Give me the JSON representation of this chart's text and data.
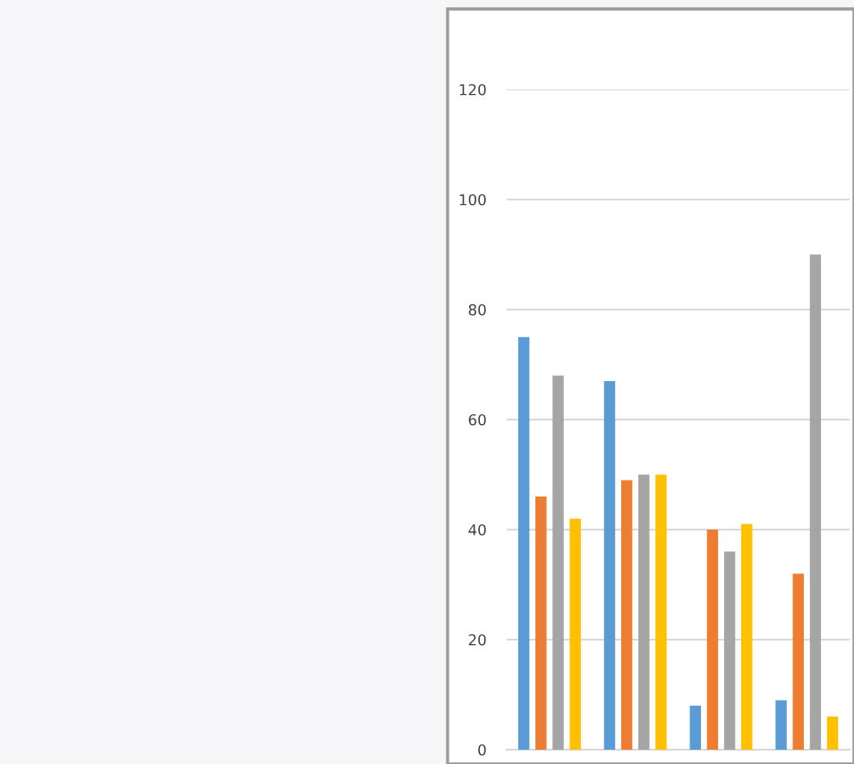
{
  "chart_data": {
    "type": "bar",
    "categories": [
      null,
      null,
      null,
      null
    ],
    "series": [
      {
        "color": "#5b9bd5",
        "values": [
          75,
          67,
          8,
          9
        ]
      },
      {
        "color": "#ed7d31",
        "values": [
          46,
          49,
          40,
          32
        ]
      },
      {
        "color": "#a5a5a5",
        "values": [
          68,
          50,
          36,
          90
        ]
      },
      {
        "color": "#ffc000",
        "values": [
          42,
          50,
          41,
          6
        ]
      }
    ],
    "ylim": [
      0,
      120
    ],
    "yticks": [
      0,
      20,
      40,
      60,
      80,
      100,
      120
    ],
    "grid": "y",
    "legend": false
  }
}
